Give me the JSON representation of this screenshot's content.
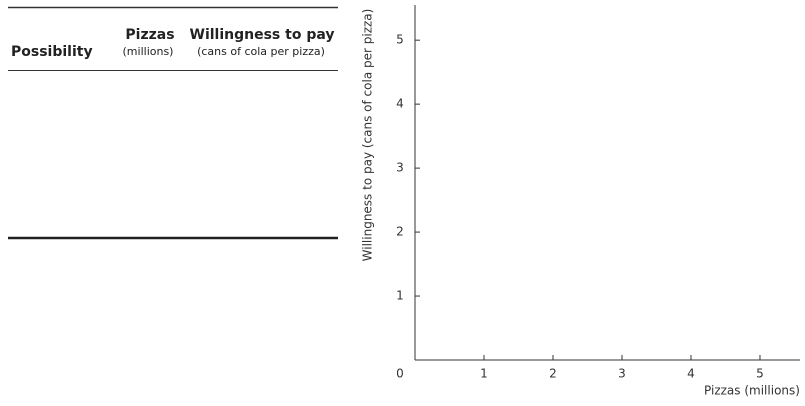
{
  "table": {
    "columns": [
      {
        "title": "Possibility"
      },
      {
        "title": "Pizzas",
        "subtitle": "(millions)"
      },
      {
        "title": "Willingness to pay",
        "subtitle": "(cans of cola per pizza)"
      }
    ]
  },
  "chart_data": {
    "type": "line",
    "xlabel": "Pizzas (millions)",
    "ylabel": "Willingness to pay (cans of cola per pizza)",
    "xlim": [
      0,
      5.58
    ],
    "xticks": [
      0,
      1,
      2,
      3,
      4,
      5
    ],
    "ylim": [
      0,
      5.55
    ],
    "yticks": [
      1,
      2,
      3,
      4,
      5
    ]
  }
}
